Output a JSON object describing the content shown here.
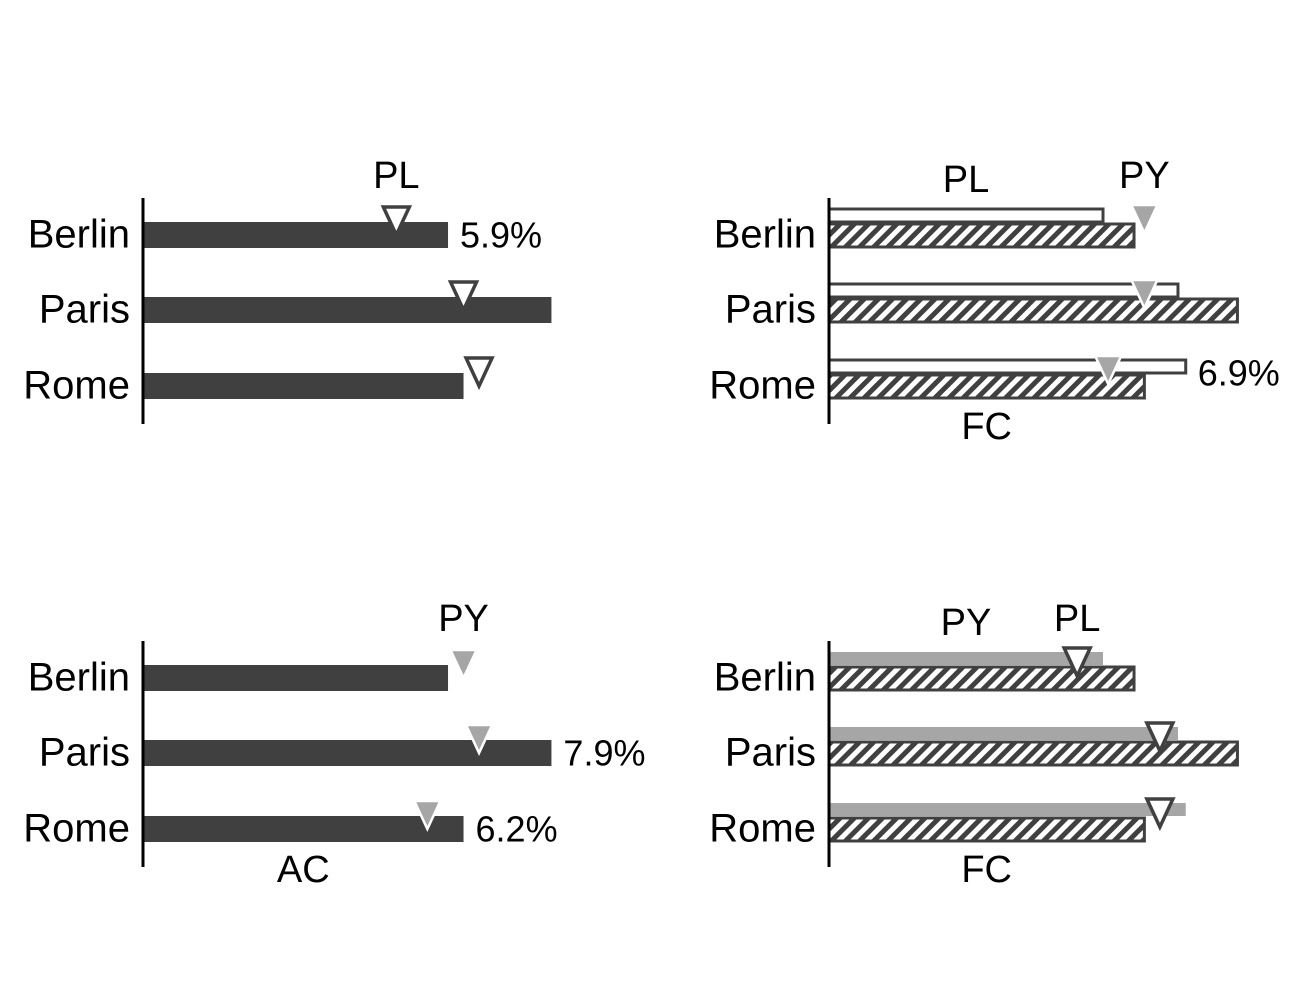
{
  "chart_data": [
    {
      "type": "bar",
      "categories": [
        "Berlin",
        "Paris",
        "Rome"
      ],
      "series": [
        {
          "color": "#404040",
          "style": "solid",
          "values": [
            5.9,
            7.9,
            6.2
          ],
          "value_labels": [
            "5.9%",
            null,
            null
          ]
        },
        {
          "name": "PL",
          "color": "#404040",
          "style": "marker-hollow",
          "values": [
            4.9,
            6.2,
            6.5
          ]
        }
      ]
    },
    {
      "type": "bar",
      "categories": [
        "Berlin",
        "Paris",
        "Rome"
      ],
      "series": [
        {
          "name": "PL",
          "color": "#404040",
          "style": "outline",
          "values": [
            5.3,
            6.75,
            6.9
          ],
          "value_labels": [
            null,
            null,
            "6.9%"
          ]
        },
        {
          "name": "FC",
          "color": "#404040",
          "style": "hatched",
          "values": [
            5.9,
            7.9,
            6.1
          ]
        },
        {
          "name": "PY",
          "color": "#a6a6a6",
          "style": "marker-filled",
          "values": [
            6.1,
            6.1,
            5.4
          ]
        }
      ]
    },
    {
      "type": "bar",
      "categories": [
        "Berlin",
        "Paris",
        "Rome"
      ],
      "series": [
        {
          "name": "AC",
          "color": "#404040",
          "style": "solid",
          "values": [
            5.9,
            7.9,
            6.2
          ],
          "value_labels": [
            null,
            "7.9%",
            "6.2%"
          ]
        },
        {
          "name": "PY",
          "color": "#a6a6a6",
          "style": "marker-filled",
          "values": [
            6.2,
            6.5,
            5.5
          ]
        }
      ]
    },
    {
      "type": "bar",
      "categories": [
        "Berlin",
        "Paris",
        "Rome"
      ],
      "series": [
        {
          "name": "PY",
          "color": "#a6a6a6",
          "style": "shaded",
          "values": [
            5.3,
            6.75,
            6.9
          ]
        },
        {
          "name": "FC",
          "color": "#404040",
          "style": "hatched",
          "values": [
            5.9,
            7.9,
            6.1
          ]
        },
        {
          "name": "PL",
          "color": "#404040",
          "style": "marker-hollow",
          "values": [
            4.8,
            6.4,
            6.4
          ]
        }
      ]
    }
  ]
}
